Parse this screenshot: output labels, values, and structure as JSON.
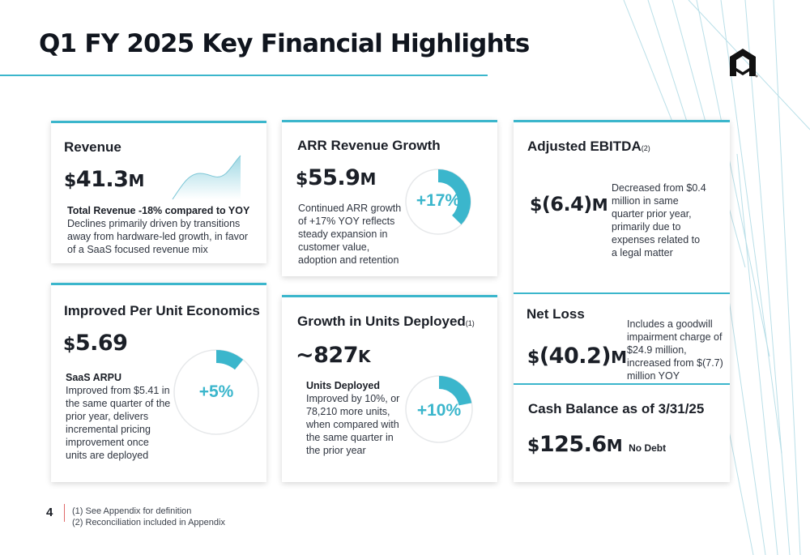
{
  "slide": {
    "title": "Q1 FY 2025 Key Financial Highlights",
    "page_number": "4",
    "footnotes": [
      "(1)  See Appendix for definition",
      "(2)  Reconciliation  included in Appendix"
    ]
  },
  "revenue": {
    "title": "Revenue",
    "currency": "$",
    "value": "41.3",
    "suffix": "M",
    "subhead": "Total Revenue -18% compared to YOY",
    "body": "Declines primarily driven by transitions away from hardware-led growth, in favor of a SaaS focused revenue mix"
  },
  "arr": {
    "title": "ARR Revenue Growth",
    "currency": "$",
    "value": "55.9",
    "suffix": "M",
    "body": "Continued ARR growth of +17% YOY reflects steady expansion in customer value, adoption and retention",
    "ring_label": "+17%",
    "ring_fraction": 0.17
  },
  "ebitda": {
    "title": "Adjusted EBITDA",
    "title_note": "(2)",
    "value": "(6.4)",
    "currency": "$",
    "suffix": "M",
    "body": "Decreased from $0.4 million in same quarter prior year, primarily due to expenses related to a legal matter"
  },
  "unit_econ": {
    "title": "Improved Per Unit Economics",
    "currency": "$",
    "value": "5.69",
    "subhead": "SaaS ARPU",
    "body": "Improved from $5.41 in the same quarter of the prior year, delivers incremental pricing improvement once units are deployed",
    "ring_label": "+5%",
    "ring_fraction": 0.05
  },
  "units": {
    "title": "Growth in Units Deployed",
    "title_note": "(1)",
    "prefix": "~",
    "value": "827",
    "suffix": "K",
    "subhead": "Units Deployed",
    "body": "Improved by 10%, or 78,210 more units, when compared with the same quarter in the prior year",
    "ring_label": "+10%",
    "ring_fraction": 0.1
  },
  "net_loss": {
    "title": "Net Loss",
    "currency": "$",
    "value": "(40.2)",
    "suffix": "M",
    "body": "Includes a goodwill impairment charge of $24.9 million, increased from $(7.7) million YOY"
  },
  "cash": {
    "title": "Cash Balance as of 3/31/25",
    "currency": "$",
    "value": "125.6",
    "suffix": "M",
    "note": "No Debt"
  },
  "colors": {
    "accent": "#3bb6cc",
    "text": "#1b1f27"
  },
  "icons": {
    "logo": "company-logo-icon"
  }
}
